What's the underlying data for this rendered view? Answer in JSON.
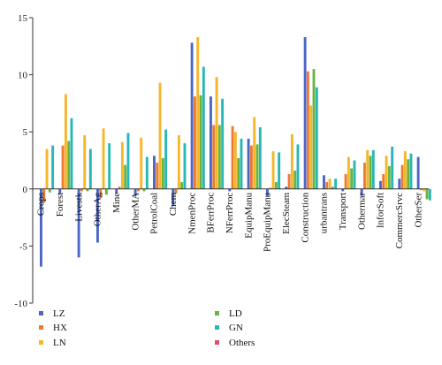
{
  "chart_data": {
    "type": "bar",
    "title": "",
    "xlabel": "",
    "ylabel": "",
    "ylim": [
      -10,
      15
    ],
    "yticks": [
      -10,
      -5,
      0,
      5,
      10,
      15
    ],
    "grid": false,
    "legend_placement": "bottom-left",
    "categories": [
      "Crops",
      "Forest",
      "Livestk",
      "OtherAg",
      "Mine",
      "OtherMA",
      "PetrolCoal",
      "Chem",
      "NmenProc",
      "BFerrProc",
      "NFerrProc",
      "EquipManu",
      "ProEquipManu",
      "ElecSteam",
      "Construction",
      "urbantrans",
      "Transport",
      "Othermar",
      "InforSoft",
      "CommercSrvc",
      "OtherSer"
    ],
    "series": [
      {
        "name": "LZ",
        "color": "#4a66c8",
        "values": [
          -6.8,
          -0.4,
          -6.0,
          -4.7,
          -0.4,
          -0.6,
          2.9,
          -1.5,
          12.8,
          8.1,
          -0.2,
          4.4,
          -0.6,
          0.2,
          13.3,
          1.2,
          -0.2,
          -0.6,
          0.7,
          0.9,
          2.8
        ]
      },
      {
        "name": "HX",
        "color": "#ed7a31",
        "values": [
          -1.2,
          3.8,
          -0.2,
          -0.8,
          0.2,
          -0.2,
          2.3,
          -0.4,
          8.1,
          5.6,
          5.5,
          3.8,
          0.1,
          1.3,
          10.3,
          0.6,
          1.3,
          2.3,
          1.3,
          2.1,
          -0.1
        ]
      },
      {
        "name": "LN",
        "color": "#f5b62a",
        "values": [
          3.5,
          8.3,
          4.7,
          5.3,
          4.1,
          4.5,
          9.3,
          4.7,
          13.3,
          9.8,
          5.0,
          6.3,
          3.3,
          4.8,
          7.3,
          0.9,
          2.8,
          3.4,
          2.9,
          3.3,
          -0.2
        ]
      },
      {
        "name": "LD",
        "color": "#6cb33e",
        "values": [
          -0.3,
          4.2,
          -0.2,
          -0.5,
          2.1,
          -0.2,
          2.7,
          0.6,
          8.2,
          5.6,
          2.7,
          3.9,
          0.6,
          1.6,
          10.5,
          0.2,
          1.8,
          2.9,
          2.0,
          2.6,
          -0.9
        ]
      },
      {
        "name": "GN",
        "color": "#27b8b5",
        "values": [
          3.8,
          6.2,
          3.5,
          4.0,
          4.9,
          2.8,
          5.2,
          4.0,
          10.7,
          7.9,
          4.4,
          5.4,
          3.2,
          3.9,
          8.9,
          0.9,
          2.5,
          3.4,
          3.7,
          3.1,
          -1.0
        ]
      },
      {
        "name": "Others",
        "color": "#e84a6a",
        "values": [
          0,
          0,
          0,
          0,
          0,
          0,
          0,
          0,
          0,
          0,
          0,
          0,
          0,
          0,
          0,
          0,
          0,
          0,
          0,
          0,
          0
        ]
      }
    ]
  }
}
